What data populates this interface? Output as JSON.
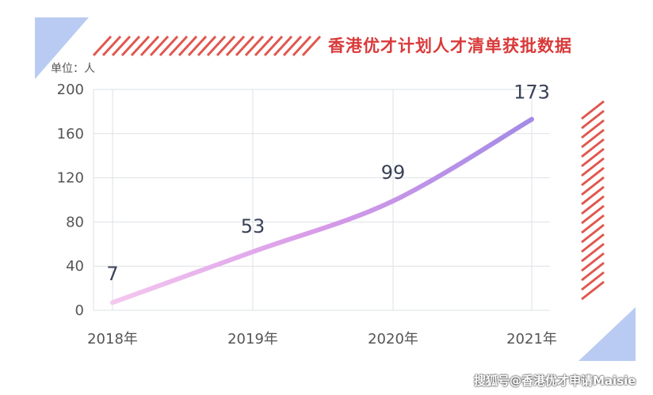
{
  "colors": {
    "title": "#d93a3a",
    "stripe": "#e0574f",
    "corner": "#b9cbf2",
    "grid": "#dde1e6",
    "line_start": "#f4c8ef",
    "line_mid": "#d79ae8",
    "line_end": "#a28be6"
  },
  "title": "香港优才计划人才清单获批数据",
  "unit_label": "单位：人",
  "watermark": "搜狐号@香港优才申请Maisie",
  "chart_data": {
    "type": "line",
    "title": "香港优才计划人才清单获批数据",
    "ylabel": "单位：人",
    "xlabel": "",
    "categories": [
      "2018年",
      "2019年",
      "2020年",
      "2021年"
    ],
    "x": [
      "2018年",
      "2019年",
      "2020年",
      "2021年"
    ],
    "values": [
      7,
      53,
      99,
      173
    ],
    "data_labels": [
      "7",
      "53",
      "99",
      "173"
    ],
    "ylim": [
      0,
      200
    ],
    "yticks": [
      "0",
      "40",
      "80",
      "120",
      "160",
      "200"
    ],
    "grid": true,
    "legend": "none"
  }
}
